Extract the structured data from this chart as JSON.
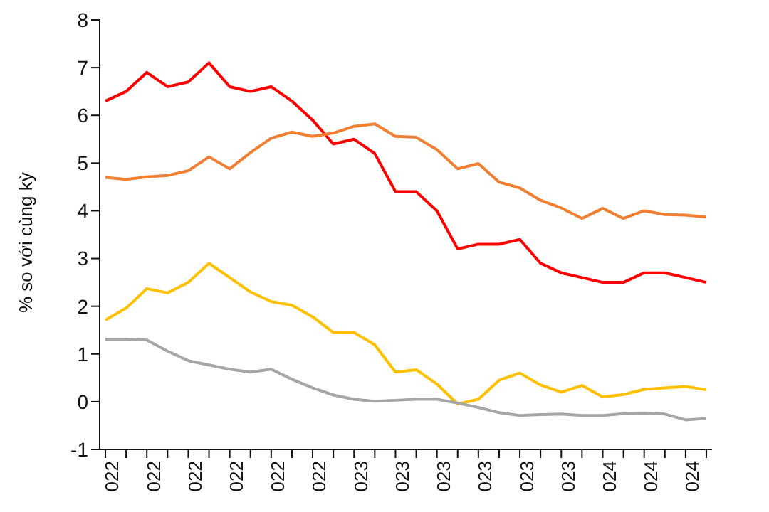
{
  "chart_data": {
    "type": "line",
    "ylabel": "% so với cùng kỳ",
    "categories": [
      "022",
      null,
      "022",
      null,
      "022",
      null,
      "022",
      null,
      "022",
      null,
      "022",
      null,
      "023",
      null,
      "023",
      null,
      "023",
      null,
      "023",
      null,
      "023",
      null,
      "023",
      null,
      "024",
      null,
      "024",
      null,
      "024",
      null
    ],
    "series": [
      {
        "color": "#ff0000",
        "values": [
          6.3,
          6.5,
          6.9,
          6.6,
          6.7,
          7.1,
          6.6,
          6.5,
          6.6,
          6.3,
          5.9,
          5.4,
          5.5,
          5.2,
          4.4,
          4.4,
          4.0,
          3.2,
          3.3,
          3.3,
          3.4,
          2.9,
          2.7,
          2.6,
          2.5,
          2.5,
          2.7,
          2.7,
          2.6,
          2.5
        ]
      },
      {
        "color": "#f07f32",
        "values": [
          4.7,
          4.66,
          4.71,
          4.74,
          4.84,
          5.13,
          4.88,
          5.22,
          5.52,
          5.65,
          5.56,
          5.63,
          5.77,
          5.82,
          5.56,
          5.54,
          5.28,
          4.88,
          4.99,
          4.6,
          4.48,
          4.22,
          4.06,
          3.84,
          4.05,
          3.84,
          4.0,
          3.92,
          3.91,
          3.87
        ]
      },
      {
        "color": "#ffc000",
        "values": [
          1.71,
          1.96,
          2.37,
          2.28,
          2.5,
          2.9,
          2.6,
          2.3,
          2.1,
          2.02,
          1.78,
          1.45,
          1.45,
          1.19,
          0.62,
          0.67,
          0.37,
          -0.05,
          0.05,
          0.45,
          0.6,
          0.35,
          0.2,
          0.34,
          0.1,
          0.15,
          0.26,
          0.29,
          0.32,
          0.25
        ]
      },
      {
        "color": "#a6a6a6",
        "values": [
          1.31,
          1.31,
          1.29,
          1.06,
          0.86,
          0.77,
          0.68,
          0.62,
          0.68,
          0.47,
          0.29,
          0.14,
          0.05,
          0.01,
          0.03,
          0.05,
          0.05,
          -0.03,
          -0.12,
          -0.23,
          -0.29,
          -0.27,
          -0.26,
          -0.29,
          -0.29,
          -0.25,
          -0.24,
          -0.26,
          -0.38,
          -0.35
        ]
      }
    ],
    "ylim": [
      -1,
      8
    ],
    "yticks": [
      -1,
      0,
      1,
      2,
      3,
      4,
      5,
      6,
      7,
      8
    ],
    "grid": false,
    "legend": false,
    "marker": "none",
    "line_style": "solid"
  }
}
